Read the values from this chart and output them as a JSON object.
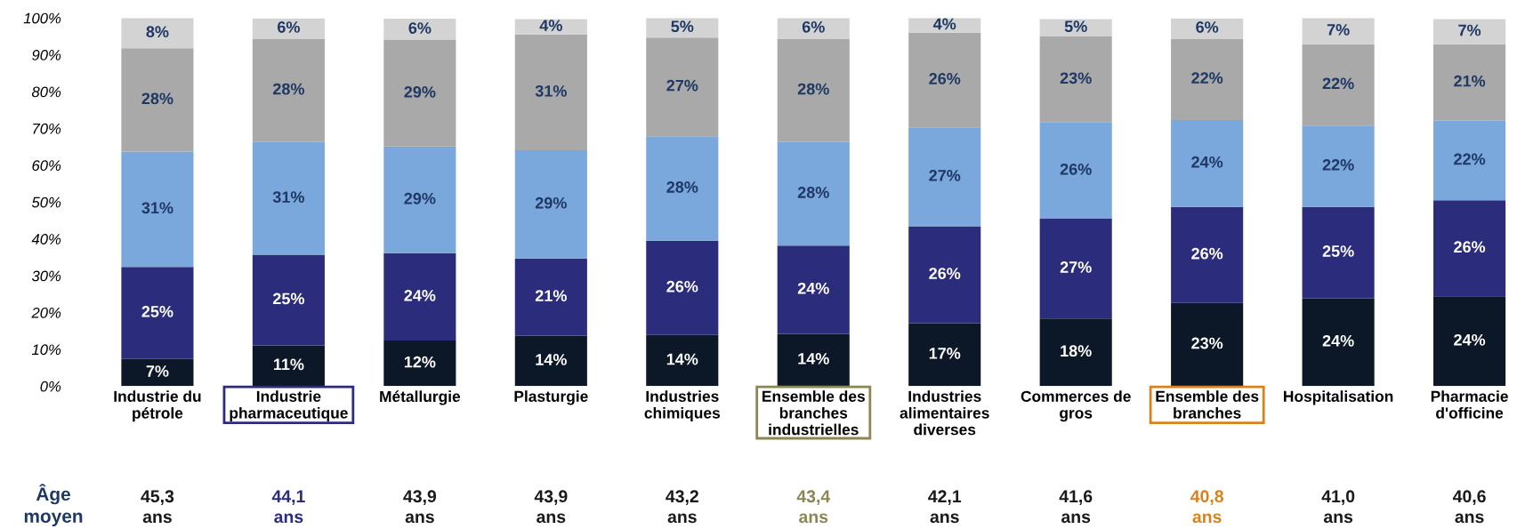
{
  "chart_data": {
    "type": "bar",
    "stacked": true,
    "categories": [
      "Industrie du\npétrole",
      "Industrie\npharmaceutique",
      "Métallurgie",
      "Plasturgie",
      "Industries\nchimiques",
      "Ensemble des\nbranches\nindustrielles",
      "Industries\nalimentaires\ndiverses",
      "Commerces de\ngros",
      "Ensemble des\nbranches",
      "Hospitalisation",
      "Pharmacie\nd'officine"
    ],
    "ylim": [
      0,
      100
    ],
    "yticks": [
      {
        "value": 0,
        "label": "0%"
      },
      {
        "value": 10,
        "label": "10%"
      },
      {
        "value": 20,
        "label": "20%"
      },
      {
        "value": 30,
        "label": "30%"
      },
      {
        "value": 40,
        "label": "40%"
      },
      {
        "value": 50,
        "label": "50%"
      },
      {
        "value": 60,
        "label": "60%"
      },
      {
        "value": 70,
        "label": "70%"
      },
      {
        "value": 80,
        "label": "80%"
      },
      {
        "value": 90,
        "label": "90%"
      },
      {
        "value": 100,
        "label": "100%"
      }
    ],
    "grid": false,
    "legend": false,
    "series": [
      {
        "color": "#0c1727",
        "values": [
          7.4,
          11.1,
          12.4,
          13.7,
          13.9,
          14.2,
          17.1,
          18.4,
          22.6,
          23.9,
          24.4
        ],
        "value_labels": [
          "7%",
          "11%",
          "12%",
          "14%",
          "14%",
          "14%",
          "17%",
          "18%",
          "23%",
          "24%",
          "24%"
        ]
      },
      {
        "color": "#2b2c7c",
        "values": [
          25.0,
          24.6,
          23.7,
          21.0,
          25.6,
          24.0,
          26.3,
          27.1,
          26.1,
          24.8,
          26.1
        ],
        "value_labels": [
          "25%",
          "25%",
          "24%",
          "21%",
          "26%",
          "24%",
          "26%",
          "27%",
          "26%",
          "25%",
          "26%"
        ]
      },
      {
        "color": "#7aa7dc",
        "values": [
          31.3,
          30.6,
          29.0,
          29.4,
          28.4,
          28.1,
          26.9,
          26.1,
          23.6,
          22.1,
          21.6
        ],
        "value_labels": [
          "31%",
          "31%",
          "29%",
          "29%",
          "28%",
          "28%",
          "27%",
          "26%",
          "24%",
          "22%",
          "22%"
        ]
      },
      {
        "color": "#a9a9a9",
        "values": [
          28.1,
          28.1,
          28.9,
          31.4,
          26.8,
          28.1,
          25.7,
          23.4,
          22.1,
          22.1,
          20.8
        ],
        "value_labels": [
          "28%",
          "28%",
          "29%",
          "31%",
          "27%",
          "28%",
          "26%",
          "23%",
          "22%",
          "22%",
          "21%"
        ]
      },
      {
        "color": "#d3d3d3",
        "values": [
          8.2,
          5.5,
          5.8,
          4.2,
          5.3,
          5.6,
          4.0,
          4.7,
          5.5,
          7.1,
          6.8
        ],
        "value_labels": [
          "8%",
          "6%",
          "6%",
          "4%",
          "5%",
          "6%",
          "4%",
          "5%",
          "6%",
          "7%",
          "7%"
        ]
      }
    ],
    "annotations": [
      "Âge\nmoyen",
      "45,3\nans",
      "44,1\nans",
      "43,9\nans",
      "43,9\nans",
      "43,2\nans",
      "43,4\nans",
      "42,1\nans",
      "41,6\nans",
      "40,8\nans",
      "41,0\nans",
      "40,6\nans"
    ]
  }
}
